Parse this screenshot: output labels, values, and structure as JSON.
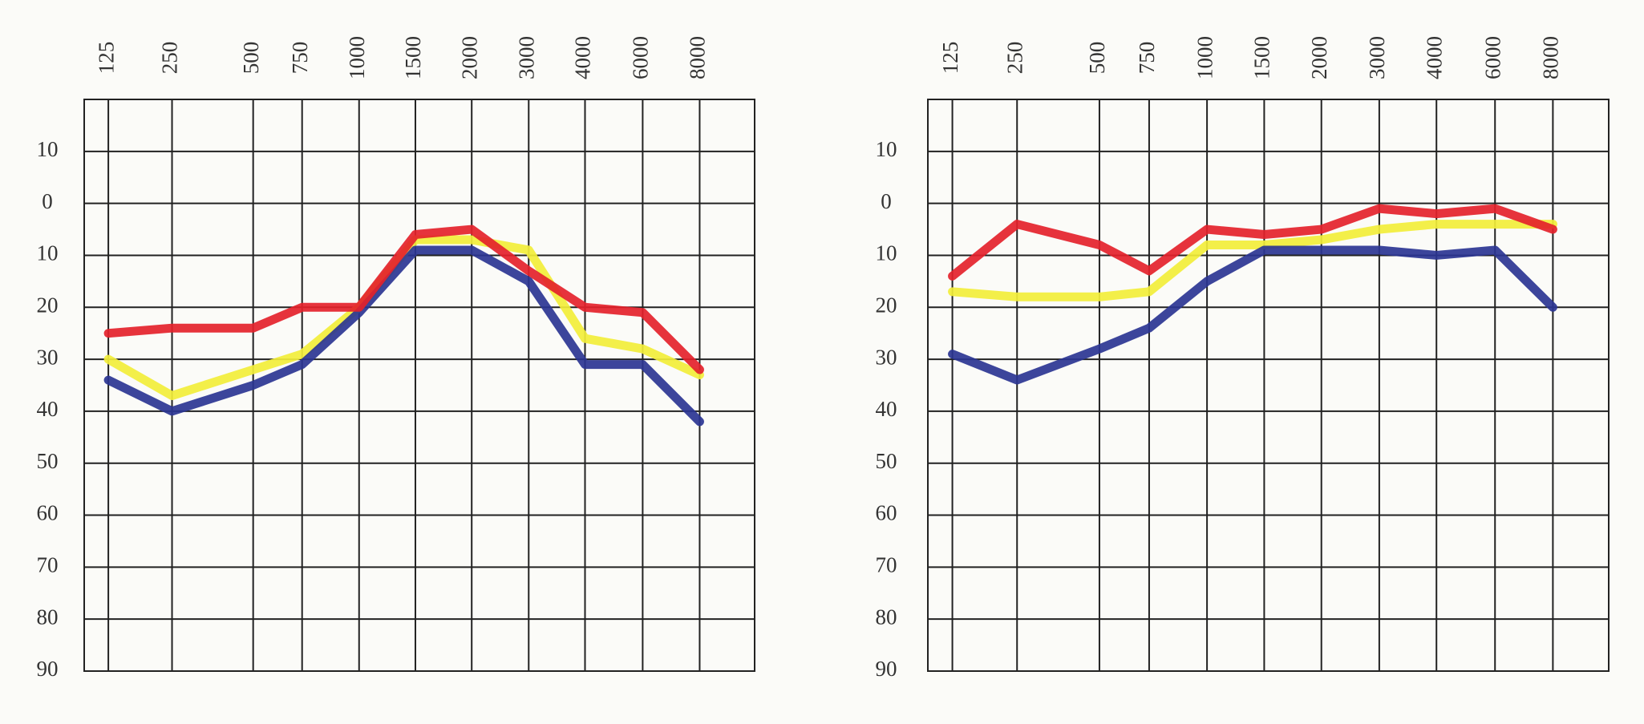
{
  "chart_data": [
    {
      "type": "line",
      "categories": [
        "125",
        "250",
        "500",
        "750",
        "1000",
        "1500",
        "2000",
        "3000",
        "4000",
        "6000",
        "8000"
      ],
      "series": [
        {
          "color": "#f2ee3a",
          "values": [
            30,
            37,
            32,
            29,
            20,
            7,
            7,
            9,
            26,
            28,
            33
          ]
        },
        {
          "color": "#2b3592",
          "values": [
            34,
            40,
            35,
            31,
            21,
            9,
            9,
            15,
            31,
            31,
            42
          ]
        },
        {
          "color": "#e4222b",
          "values": [
            25,
            24,
            24,
            20,
            20,
            6,
            5,
            13,
            20,
            21,
            32
          ]
        }
      ],
      "ylim": [
        -20,
        90
      ],
      "yticks": [
        {
          "value": -10,
          "label": "10"
        },
        0,
        10,
        20,
        30,
        40,
        50,
        60,
        70,
        80,
        90
      ],
      "grid": true,
      "invert_y": true
    },
    {
      "type": "line",
      "categories": [
        "125",
        "250",
        "500",
        "750",
        "1000",
        "1500",
        "2000",
        "3000",
        "4000",
        "6000",
        "8000"
      ],
      "series": [
        {
          "color": "#f2ee3a",
          "values": [
            17,
            18,
            18,
            17,
            8,
            8,
            7,
            5,
            4,
            4,
            4
          ]
        },
        {
          "color": "#2b3592",
          "values": [
            29,
            34,
            28,
            24,
            15,
            9,
            9,
            9,
            10,
            9,
            20
          ]
        },
        {
          "color": "#e4222b",
          "values": [
            14,
            4,
            8,
            13,
            5,
            6,
            5,
            1,
            2,
            1,
            5
          ]
        }
      ],
      "ylim": [
        -20,
        90
      ],
      "yticks": [
        {
          "value": -10,
          "label": "10"
        },
        0,
        10,
        20,
        30,
        40,
        50,
        60,
        70,
        80,
        90
      ],
      "grid": true,
      "invert_y": true
    }
  ]
}
